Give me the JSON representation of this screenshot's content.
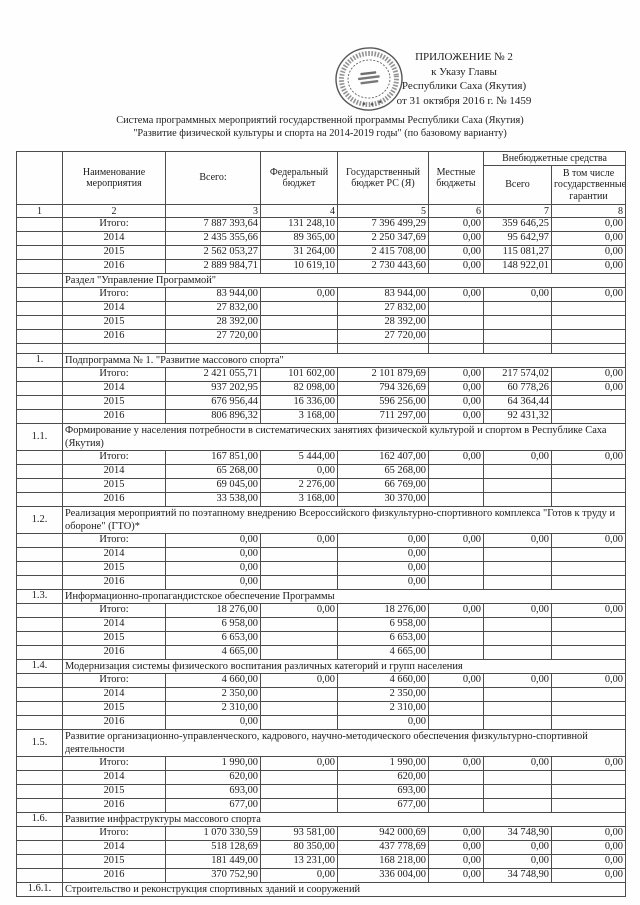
{
  "page": {
    "appendix_lines": [
      "ПРИЛОЖЕНИЕ № 2",
      "к Указу Главы",
      "Республики Саха (Якутия)",
      "от 31 октября 2016 г. № 1459"
    ],
    "title_line1": "Система программных мероприятий государственной программы Республики Саха (Якутия)",
    "title_line2": "\"Развитие физической культуры и спорта на 2014-2019 годы\"  (по базовому варианту)",
    "stamp": "circular-official-seal",
    "ink_color": "#3a3a3a"
  },
  "table": {
    "header": {
      "col_name": "Наименование мероприятия",
      "col_total": "Всего:",
      "col_federal": "Федеральный бюджет",
      "col_state": "Государственный бюджет РС (Я)",
      "col_local": "Местные бюджеты",
      "col_extra_group": "Внебюджетные средства",
      "col_extra_total": "Всего",
      "col_extra_guarantees": "В том числе государственные гарантии",
      "col_numbers": [
        "1",
        "2",
        "3",
        "4",
        "5",
        "6",
        "7",
        "8"
      ]
    },
    "rows": [
      {
        "type": "data",
        "label": "Итого:",
        "values": [
          "7 887 393,64",
          "131 248,10",
          "7 396 499,29",
          "0,00",
          "359 646,25",
          "0,00"
        ]
      },
      {
        "type": "data",
        "label": "2014",
        "values": [
          "2 435 355,66",
          "89 365,00",
          "2 250 347,69",
          "0,00",
          "95 642,97",
          "0,00"
        ]
      },
      {
        "type": "data",
        "label": "2015",
        "values": [
          "2 562 053,27",
          "31 264,00",
          "2 415 708,00",
          "0,00",
          "115 081,27",
          "0,00"
        ]
      },
      {
        "type": "data",
        "label": "2016",
        "values": [
          "2 889 984,71",
          "10 619,10",
          "2 730 443,60",
          "0,00",
          "148 922,01",
          "0,00"
        ]
      },
      {
        "type": "section",
        "num": "",
        "title": "Раздел \"Управление Программой\""
      },
      {
        "type": "data",
        "label": "Итого:",
        "values": [
          "83 944,00",
          "0,00",
          "83 944,00",
          "0,00",
          "0,00",
          "0,00"
        ]
      },
      {
        "type": "data",
        "label": "2014",
        "values": [
          "27 832,00",
          "",
          "27 832,00",
          "",
          "",
          ""
        ]
      },
      {
        "type": "data",
        "label": "2015",
        "values": [
          "28 392,00",
          "",
          "28 392,00",
          "",
          "",
          ""
        ]
      },
      {
        "type": "data",
        "label": "2016",
        "values": [
          "27 720,00",
          "",
          "27 720,00",
          "",
          "",
          ""
        ]
      },
      {
        "type": "empty"
      },
      {
        "type": "section",
        "num": "1.",
        "title": "Подпрограмма № 1. \"Развитие массового спорта\""
      },
      {
        "type": "data",
        "label": "Итого:",
        "values": [
          "2 421 055,71",
          "101 602,00",
          "2 101 879,69",
          "0,00",
          "217 574,02",
          "0,00"
        ]
      },
      {
        "type": "data",
        "label": "2014",
        "values": [
          "937 202,95",
          "82 098,00",
          "794 326,69",
          "0,00",
          "60 778,26",
          "0,00"
        ]
      },
      {
        "type": "data",
        "label": "2015",
        "values": [
          "676 956,44",
          "16 336,00",
          "596 256,00",
          "0,00",
          "64 364,44",
          ""
        ]
      },
      {
        "type": "data",
        "label": "2016",
        "values": [
          "806 896,32",
          "3 168,00",
          "711 297,00",
          "0,00",
          "92 431,32",
          ""
        ]
      },
      {
        "type": "section",
        "num": "1.1.",
        "title": "Формирование у населения  потребности в систематических занятиях физической культурой и спортом в Республике Саха (Якутия)"
      },
      {
        "type": "data",
        "label": "Итого:",
        "values": [
          "167 851,00",
          "5 444,00",
          "162 407,00",
          "0,00",
          "0,00",
          "0,00"
        ]
      },
      {
        "type": "data",
        "label": "2014",
        "values": [
          "65 268,00",
          "0,00",
          "65 268,00",
          "",
          "",
          ""
        ]
      },
      {
        "type": "data",
        "label": "2015",
        "values": [
          "69 045,00",
          "2 276,00",
          "66 769,00",
          "",
          "",
          ""
        ]
      },
      {
        "type": "data",
        "label": "2016",
        "values": [
          "33 538,00",
          "3 168,00",
          "30 370,00",
          "",
          "",
          ""
        ]
      },
      {
        "type": "section",
        "num": "1.2.",
        "title": "Реализация мероприятий по поэтапному внедрению Всероссийского физкультурно-спортивного комплекса \"Готов к труду и обороне\" (ГТО)*"
      },
      {
        "type": "data",
        "label": "Итого:",
        "values": [
          "0,00",
          "0,00",
          "0,00",
          "0,00",
          "0,00",
          "0,00"
        ]
      },
      {
        "type": "data",
        "label": "2014",
        "values": [
          "0,00",
          "",
          "0,00",
          "",
          "",
          ""
        ]
      },
      {
        "type": "data",
        "label": "2015",
        "values": [
          "0,00",
          "",
          "0,00",
          "",
          "",
          ""
        ]
      },
      {
        "type": "data",
        "label": "2016",
        "values": [
          "0,00",
          "",
          "0,00",
          "",
          "",
          ""
        ]
      },
      {
        "type": "section",
        "num": "1.3.",
        "title": "Информационно-пропагандистское обеспечение Программы"
      },
      {
        "type": "data",
        "label": "Итого:",
        "values": [
          "18 276,00",
          "0,00",
          "18 276,00",
          "0,00",
          "0,00",
          "0,00"
        ]
      },
      {
        "type": "data",
        "label": "2014",
        "values": [
          "6 958,00",
          "",
          "6 958,00",
          "",
          "",
          ""
        ]
      },
      {
        "type": "data",
        "label": "2015",
        "values": [
          "6 653,00",
          "",
          "6 653,00",
          "",
          "",
          ""
        ]
      },
      {
        "type": "data",
        "label": "2016",
        "values": [
          "4 665,00",
          "",
          "4 665,00",
          "",
          "",
          ""
        ]
      },
      {
        "type": "section",
        "num": "1.4.",
        "title": "Модернизация системы физического воспитания различных категорий и групп населения"
      },
      {
        "type": "data",
        "label": "Итого:",
        "values": [
          "4 660,00",
          "0,00",
          "4 660,00",
          "0,00",
          "0,00",
          "0,00"
        ]
      },
      {
        "type": "data",
        "label": "2014",
        "values": [
          "2 350,00",
          "",
          "2 350,00",
          "",
          "",
          ""
        ]
      },
      {
        "type": "data",
        "label": "2015",
        "values": [
          "2 310,00",
          "",
          "2 310,00",
          "",
          "",
          ""
        ]
      },
      {
        "type": "data",
        "label": "2016",
        "values": [
          "0,00",
          "",
          "0,00",
          "",
          "",
          ""
        ]
      },
      {
        "type": "section",
        "num": "1.5.",
        "title": "Развитие организационно-управленческого, кадрового, научно-методического обеспечения физкультурно-спортивной деятельности"
      },
      {
        "type": "data",
        "label": "Итого:",
        "values": [
          "1 990,00",
          "0,00",
          "1 990,00",
          "0,00",
          "0,00",
          "0,00"
        ]
      },
      {
        "type": "data",
        "label": "2014",
        "values": [
          "620,00",
          "",
          "620,00",
          "",
          "",
          ""
        ]
      },
      {
        "type": "data",
        "label": "2015",
        "values": [
          "693,00",
          "",
          "693,00",
          "",
          "",
          ""
        ]
      },
      {
        "type": "data",
        "label": "2016",
        "values": [
          "677,00",
          "",
          "677,00",
          "",
          "",
          ""
        ]
      },
      {
        "type": "section",
        "num": "1.6.",
        "title": "Развитие инфраструктуры массового спорта"
      },
      {
        "type": "data",
        "label": "Итого:",
        "values": [
          "1 070 330,59",
          "93 581,00",
          "942 000,69",
          "0,00",
          "34 748,90",
          "0,00"
        ]
      },
      {
        "type": "data",
        "label": "2014",
        "values": [
          "518 128,69",
          "80 350,00",
          "437 778,69",
          "0,00",
          "0,00",
          "0,00"
        ]
      },
      {
        "type": "data",
        "label": "2015",
        "values": [
          "181 449,00",
          "13 231,00",
          "168 218,00",
          "0,00",
          "0,00",
          "0,00"
        ]
      },
      {
        "type": "data",
        "label": "2016",
        "values": [
          "370 752,90",
          "0,00",
          "336 004,00",
          "0,00",
          "34 748,90",
          "0,00"
        ]
      },
      {
        "type": "section",
        "num": "1.6.1.",
        "title": "Строительство и реконструкция спортивных зданий и сооружений"
      }
    ]
  }
}
